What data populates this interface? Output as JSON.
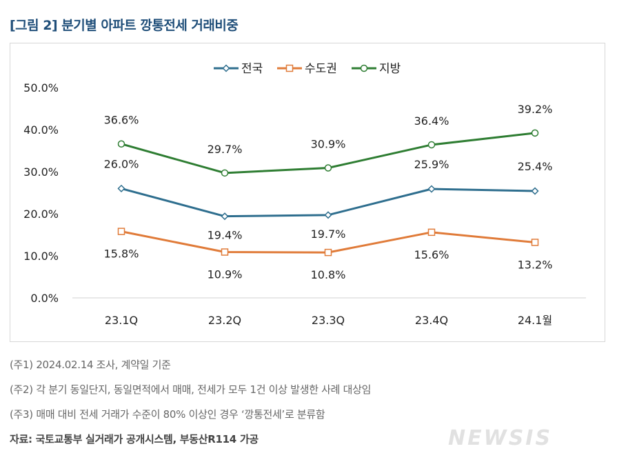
{
  "figure_title": "[그림 2] 분기별 아파트 깡통전세 거래비중",
  "chart_data": {
    "type": "line",
    "categories": [
      "23.1Q",
      "23.2Q",
      "23.3Q",
      "23.4Q",
      "24.1월"
    ],
    "ylim": [
      0,
      50
    ],
    "y_ticks": [
      "0.0%",
      "10.0%",
      "20.0%",
      "30.0%",
      "40.0%",
      "50.0%"
    ],
    "grid": false,
    "legend": "top-center",
    "series": [
      {
        "name": "전국",
        "color": "#2e6e8e",
        "marker": "diamond",
        "values": [
          26.0,
          19.4,
          19.7,
          25.9,
          25.4
        ],
        "labels": [
          "26.0%",
          "19.4%",
          "19.7%",
          "25.9%",
          "25.4%"
        ]
      },
      {
        "name": "수도권",
        "color": "#e07b39",
        "marker": "square",
        "values": [
          15.8,
          10.9,
          10.8,
          15.6,
          13.2
        ],
        "labels": [
          "15.8%",
          "10.9%",
          "10.8%",
          "15.6%",
          "13.2%"
        ]
      },
      {
        "name": "지방",
        "color": "#2e7d32",
        "marker": "circle",
        "values": [
          36.6,
          29.7,
          30.9,
          36.4,
          39.2
        ],
        "labels": [
          "36.6%",
          "29.7%",
          "30.9%",
          "36.4%",
          "39.2%"
        ]
      }
    ]
  },
  "notes": [
    "(주1) 2024.02.14 조사, 계약일 기준",
    "(주2) 각 분기 동일단지, 동일면적에서 매매, 전세가 모두 1건 이상 발생한 사례 대상임",
    "(주3) 매매 대비 전세 거래가 수준이 80% 이상인 경우 ‘깡통전세’로 분류함"
  ],
  "source": "자료: 국토교통부 실거래가 공개시스템, 부동산R114 가공",
  "watermark": "NEWSIS"
}
